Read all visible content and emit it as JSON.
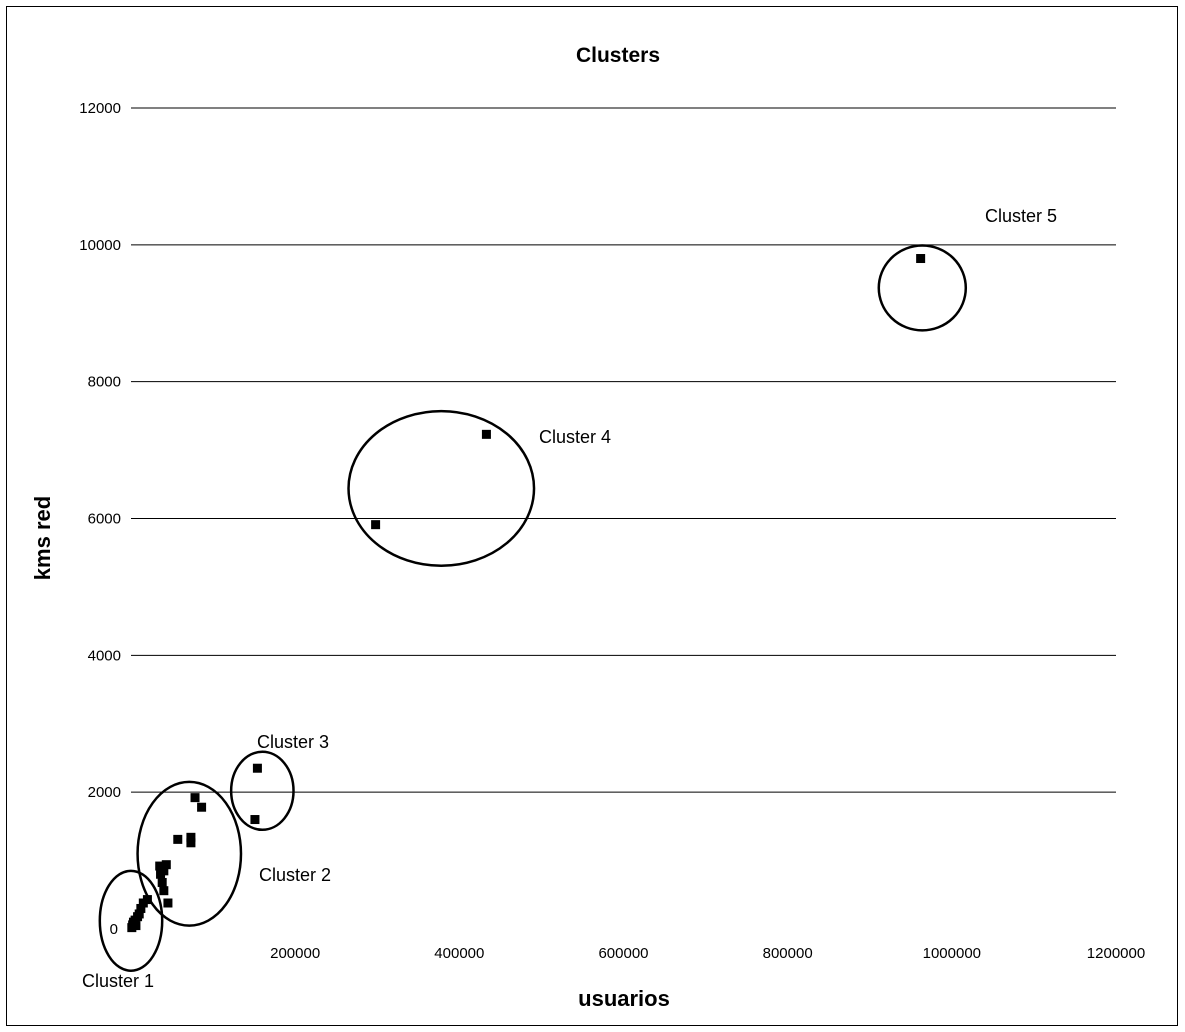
{
  "chart_data": {
    "type": "scatter",
    "title": "Clusters",
    "xlabel": "usuarios",
    "ylabel": "kms red",
    "xlim": [
      0,
      1200000
    ],
    "ylim": [
      0,
      12000
    ],
    "x_ticks": [
      "0",
      "200000",
      "400000",
      "600000",
      "800000",
      "1000000",
      "1200000"
    ],
    "y_ticks": [
      "0",
      "2000",
      "4000",
      "6000",
      "8000",
      "10000",
      "12000"
    ],
    "grid": "horizontal",
    "legend": "none",
    "marker": "square",
    "color": "#000000",
    "points": [
      {
        "x": 1000,
        "y": 20
      },
      {
        "x": 2000,
        "y": 60
      },
      {
        "x": 3000,
        "y": 100
      },
      {
        "x": 5000,
        "y": 130
      },
      {
        "x": 6000,
        "y": 50
      },
      {
        "x": 8000,
        "y": 180
      },
      {
        "x": 10000,
        "y": 220
      },
      {
        "x": 12000,
        "y": 300
      },
      {
        "x": 15000,
        "y": 380
      },
      {
        "x": 20000,
        "y": 430
      },
      {
        "x": 35000,
        "y": 920
      },
      {
        "x": 36000,
        "y": 800
      },
      {
        "x": 38000,
        "y": 680
      },
      {
        "x": 40000,
        "y": 850
      },
      {
        "x": 40000,
        "y": 560
      },
      {
        "x": 43000,
        "y": 940
      },
      {
        "x": 45000,
        "y": 380
      },
      {
        "x": 57000,
        "y": 1310
      },
      {
        "x": 73000,
        "y": 1340
      },
      {
        "x": 73000,
        "y": 1260
      },
      {
        "x": 78000,
        "y": 1920
      },
      {
        "x": 86000,
        "y": 1780
      },
      {
        "x": 151000,
        "y": 1600
      },
      {
        "x": 154000,
        "y": 2350
      },
      {
        "x": 298000,
        "y": 5910
      },
      {
        "x": 433000,
        "y": 7230
      },
      {
        "x": 962000,
        "y": 9800
      }
    ],
    "annotations": [
      {
        "label": "Cluster 1",
        "cx": 0,
        "cy": 120,
        "rx": 38000,
        "ry": 730
      },
      {
        "label": "Cluster 2",
        "cx": 71000,
        "cy": 1100,
        "rx": 63000,
        "ry": 1050
      },
      {
        "label": "Cluster 3",
        "cx": 160000,
        "cy": 2020,
        "rx": 38000,
        "ry": 570
      },
      {
        "label": "Cluster 4",
        "cx": 378000,
        "cy": 6440,
        "rx": 113000,
        "ry": 1130
      },
      {
        "label": "Cluster 5",
        "cx": 964000,
        "cy": 9370,
        "rx": 53000,
        "ry": 620
      }
    ]
  }
}
